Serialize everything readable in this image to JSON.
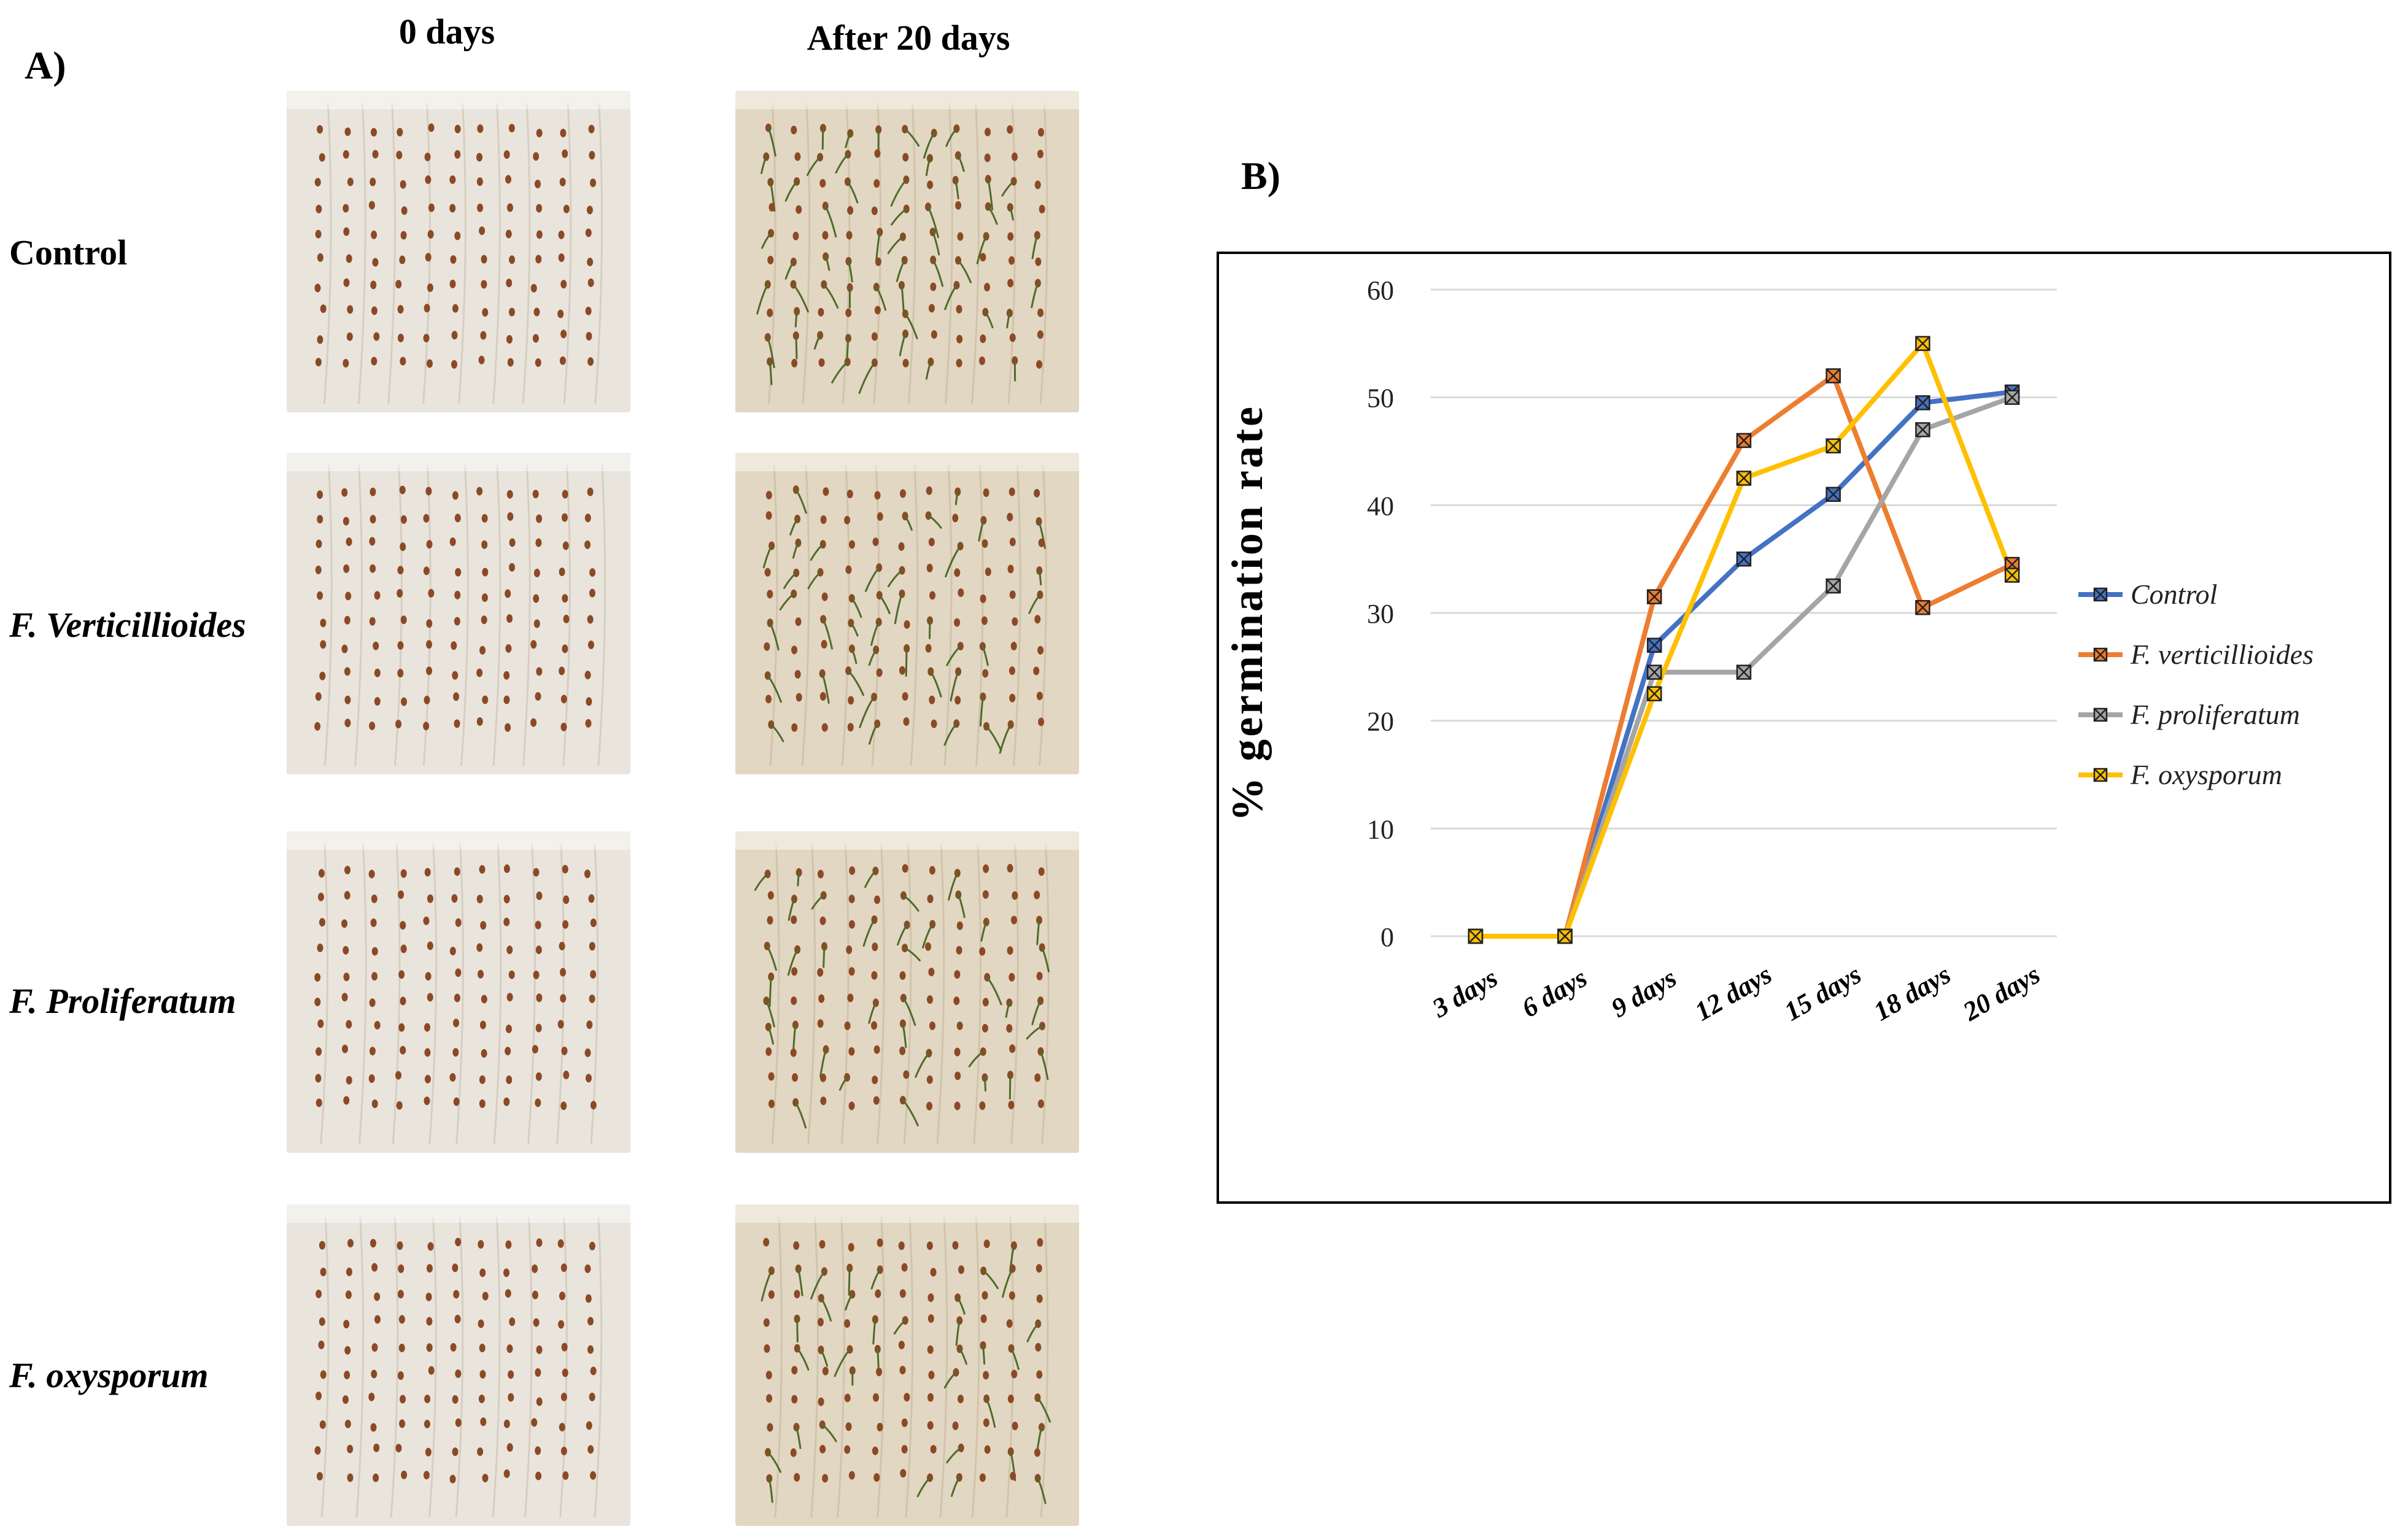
{
  "panel_a_label": "A)",
  "panel_b_label": "B)",
  "columns": [
    "0 days",
    "After 20 days"
  ],
  "rows": [
    {
      "label": "Control",
      "italic": false
    },
    {
      "label": "F. Verticillioides",
      "italic": true
    },
    {
      "label": "F. Proliferatum",
      "italic": true
    },
    {
      "label": "F. oxysporum",
      "italic": true
    }
  ],
  "colors": {
    "paper_day0": "#e9e5dd",
    "paper_day20": "#e2d7c2",
    "seed": "#8b4a25",
    "sprout": "#4f6b2a"
  },
  "chart_data": {
    "type": "line",
    "title": "",
    "xlabel": "",
    "ylabel": "% germination rate",
    "ylim": [
      0,
      60
    ],
    "yticks": [
      0,
      10,
      20,
      30,
      40,
      50,
      60
    ],
    "grid": true,
    "legend_position": "right",
    "categories": [
      "3 days",
      "6 days",
      "9 days",
      "12 days",
      "15 days",
      "18 days",
      "20 days"
    ],
    "series": [
      {
        "name": "Control",
        "color": "#4472c4",
        "values": [
          0,
          0,
          27,
          35,
          41,
          49.5,
          50.5
        ]
      },
      {
        "name": "F. verticillioides",
        "color": "#ed7d31",
        "values": [
          0,
          0,
          31.5,
          46,
          52,
          30.5,
          34.5
        ]
      },
      {
        "name": "F. proliferatum",
        "color": "#a5a5a5",
        "values": [
          0,
          0,
          24.5,
          24.5,
          32.5,
          47,
          50
        ]
      },
      {
        "name": "F. oxysporum",
        "color": "#ffc000",
        "values": [
          0,
          0,
          22.5,
          42.5,
          45.5,
          55,
          33.5
        ]
      }
    ]
  }
}
